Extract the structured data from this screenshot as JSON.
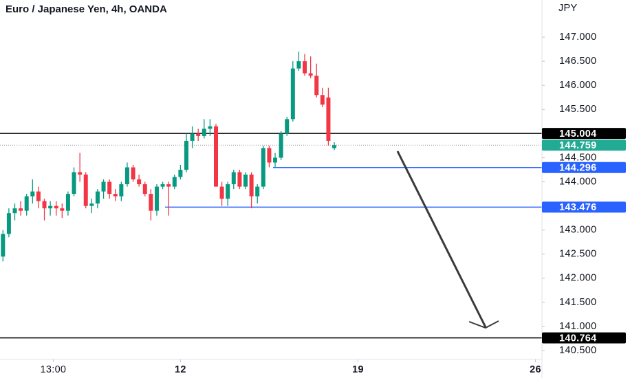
{
  "chart_data": {
    "type": "candlestick",
    "title": "Euro / Japanese Yen, 4h, OANDA",
    "y_axis_label": "JPY",
    "up_color": "#089981",
    "down_color": "#f23645",
    "x": [
      0,
      1,
      2,
      3,
      4,
      5,
      6,
      7,
      8,
      9,
      10,
      11,
      12,
      13,
      14,
      15,
      16,
      17,
      18,
      19,
      20,
      21,
      22,
      23,
      24,
      25,
      26,
      27,
      28,
      29,
      30,
      31,
      32,
      33,
      34,
      35,
      36,
      37,
      38,
      39,
      40,
      41,
      42,
      43,
      44,
      45,
      46,
      47,
      48,
      49,
      50,
      51,
      52,
      53,
      54,
      55,
      56
    ],
    "open": [
      142.45,
      142.92,
      143.35,
      143.45,
      143.4,
      143.7,
      143.8,
      143.6,
      143.45,
      143.5,
      143.45,
      143.4,
      143.75,
      144.2,
      144.15,
      143.5,
      143.55,
      143.8,
      144.0,
      143.75,
      143.7,
      143.95,
      144.3,
      144.05,
      143.95,
      143.75,
      143.4,
      143.9,
      143.95,
      143.9,
      144.1,
      144.25,
      144.85,
      145.0,
      144.95,
      145.1,
      145.15,
      143.9,
      143.65,
      143.95,
      144.2,
      143.9,
      144.15,
      143.7,
      143.9,
      144.7,
      144.4,
      144.5,
      145.0,
      145.3,
      146.35,
      146.5,
      146.25,
      146.2,
      145.8,
      145.75,
      144.7
    ],
    "high": [
      143.0,
      143.45,
      143.55,
      143.6,
      143.75,
      144.05,
      143.9,
      143.65,
      143.6,
      143.6,
      143.55,
      143.8,
      144.3,
      144.6,
      144.2,
      143.65,
      143.85,
      144.05,
      144.05,
      143.85,
      144.0,
      144.4,
      144.35,
      144.15,
      144.0,
      143.85,
      143.95,
      144.0,
      144.0,
      144.15,
      144.35,
      145.0,
      145.15,
      145.1,
      145.3,
      145.3,
      145.2,
      144.0,
      144.0,
      144.25,
      144.25,
      144.2,
      144.2,
      143.95,
      144.75,
      144.75,
      144.6,
      145.05,
      145.35,
      146.5,
      146.7,
      146.65,
      146.6,
      146.45,
      145.95,
      145.95,
      144.82
    ],
    "low": [
      142.35,
      142.85,
      143.2,
      143.3,
      143.3,
      143.55,
      143.45,
      143.2,
      143.3,
      143.3,
      143.25,
      143.3,
      143.7,
      144.0,
      143.45,
      143.35,
      143.45,
      143.65,
      143.65,
      143.6,
      143.6,
      143.9,
      144.0,
      143.9,
      143.7,
      143.2,
      143.3,
      143.85,
      143.3,
      143.85,
      144.05,
      144.2,
      144.7,
      144.85,
      144.9,
      144.95,
      143.9,
      143.5,
      143.5,
      143.85,
      143.85,
      143.85,
      143.45,
      143.55,
      143.85,
      144.3,
      144.3,
      144.45,
      144.95,
      145.25,
      146.3,
      146.2,
      146.15,
      145.75,
      145.55,
      144.75,
      144.66
    ],
    "close": [
      142.92,
      143.35,
      143.45,
      143.4,
      143.7,
      143.8,
      143.6,
      143.45,
      143.5,
      143.45,
      143.4,
      143.75,
      144.2,
      144.15,
      143.5,
      143.55,
      143.8,
      144.0,
      143.75,
      143.7,
      143.95,
      144.3,
      144.05,
      143.95,
      143.75,
      143.4,
      143.9,
      143.95,
      143.9,
      144.1,
      144.25,
      144.85,
      145.0,
      144.95,
      145.1,
      145.15,
      143.9,
      143.65,
      143.95,
      144.2,
      143.9,
      144.15,
      143.7,
      143.9,
      144.7,
      144.4,
      144.5,
      145.0,
      145.3,
      146.35,
      146.5,
      146.25,
      146.2,
      145.8,
      145.6,
      144.85,
      144.76
    ],
    "xlim": [
      -0.5,
      91.1
    ],
    "xticks": [
      {
        "value": 8.5,
        "label": "13:00"
      },
      {
        "value": 30,
        "label": "12"
      },
      {
        "value": 60,
        "label": "19"
      },
      {
        "value": 90,
        "label": "26"
      }
    ],
    "ylim": [
      140.36,
      147.77
    ],
    "yticks": [
      {
        "value": 140.5,
        "label": "140.500"
      },
      {
        "value": 141,
        "label": "141.000"
      },
      {
        "value": 141.5,
        "label": "141.500"
      },
      {
        "value": 142,
        "label": "142.000"
      },
      {
        "value": 142.5,
        "label": "142.500"
      },
      {
        "value": 143,
        "label": "143.000"
      },
      {
        "value": 143.5,
        "label": "143.500"
      },
      {
        "value": 144,
        "label": "144.000"
      },
      {
        "value": 144.5,
        "label": "144.500"
      },
      {
        "value": 145,
        "label": "145.000"
      },
      {
        "value": 145.5,
        "label": "145.500"
      },
      {
        "value": 146,
        "label": "146.000"
      },
      {
        "value": 146.5,
        "label": "146.500"
      },
      {
        "value": 147,
        "label": "147.000"
      }
    ],
    "levels": [
      {
        "value": 145.004,
        "color": "#000000",
        "style": "solid"
      },
      {
        "value": 144.759,
        "color": "#22ab94",
        "style": "dotted"
      },
      {
        "value": 144.296,
        "color": "#2962ff",
        "style": "solid"
      },
      {
        "value": 143.476,
        "color": "#2962ff",
        "style": "solid"
      },
      {
        "value": 140.764,
        "color": "#000000",
        "style": "solid"
      }
    ]
  }
}
